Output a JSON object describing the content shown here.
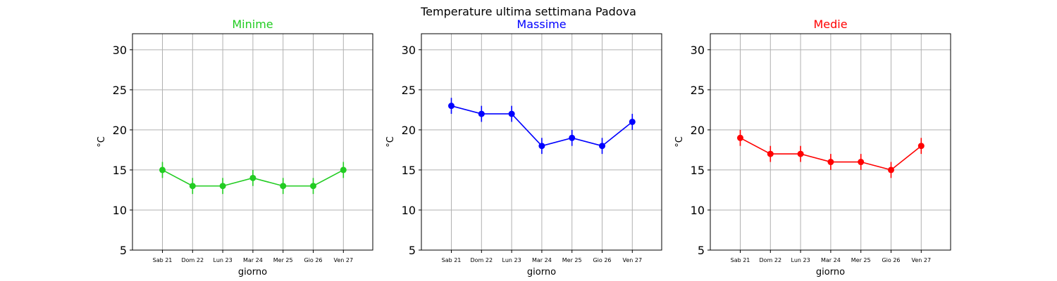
{
  "figure_title": "Temperature ultima settimana Padova",
  "chart_data": [
    {
      "type": "line",
      "title": "Minime",
      "color": "#22cc22",
      "xlabel": "giorno",
      "ylabel": "°C",
      "categories": [
        "Sab 21",
        "Dom 22",
        "Lun 23",
        "Mar 24",
        "Mer 25",
        "Gio 26",
        "Ven 27"
      ],
      "values": [
        15,
        13,
        13,
        14,
        13,
        13,
        15
      ],
      "error": 1,
      "ylim": [
        5,
        32
      ],
      "yticks": [
        5,
        10,
        15,
        20,
        25,
        30
      ],
      "grid": true
    },
    {
      "type": "line",
      "title": "Massime",
      "color": "#0000ff",
      "xlabel": "giorno",
      "ylabel": "°C",
      "categories": [
        "Sab 21",
        "Dom 22",
        "Lun 23",
        "Mar 24",
        "Mer 25",
        "Gio 26",
        "Ven 27"
      ],
      "values": [
        23,
        22,
        22,
        18,
        19,
        18,
        21
      ],
      "error": 1,
      "ylim": [
        5,
        32
      ],
      "yticks": [
        5,
        10,
        15,
        20,
        25,
        30
      ],
      "grid": true
    },
    {
      "type": "line",
      "title": "Medie",
      "color": "#ff0000",
      "xlabel": "giorno",
      "ylabel": "°C",
      "categories": [
        "Sab 21",
        "Dom 22",
        "Lun 23",
        "Mar 24",
        "Mer 25",
        "Gio 26",
        "Ven 27"
      ],
      "values": [
        19,
        17,
        17,
        16,
        16,
        15,
        18
      ],
      "error": 1,
      "ylim": [
        5,
        32
      ],
      "yticks": [
        5,
        10,
        15,
        20,
        25,
        30
      ],
      "grid": true
    }
  ]
}
